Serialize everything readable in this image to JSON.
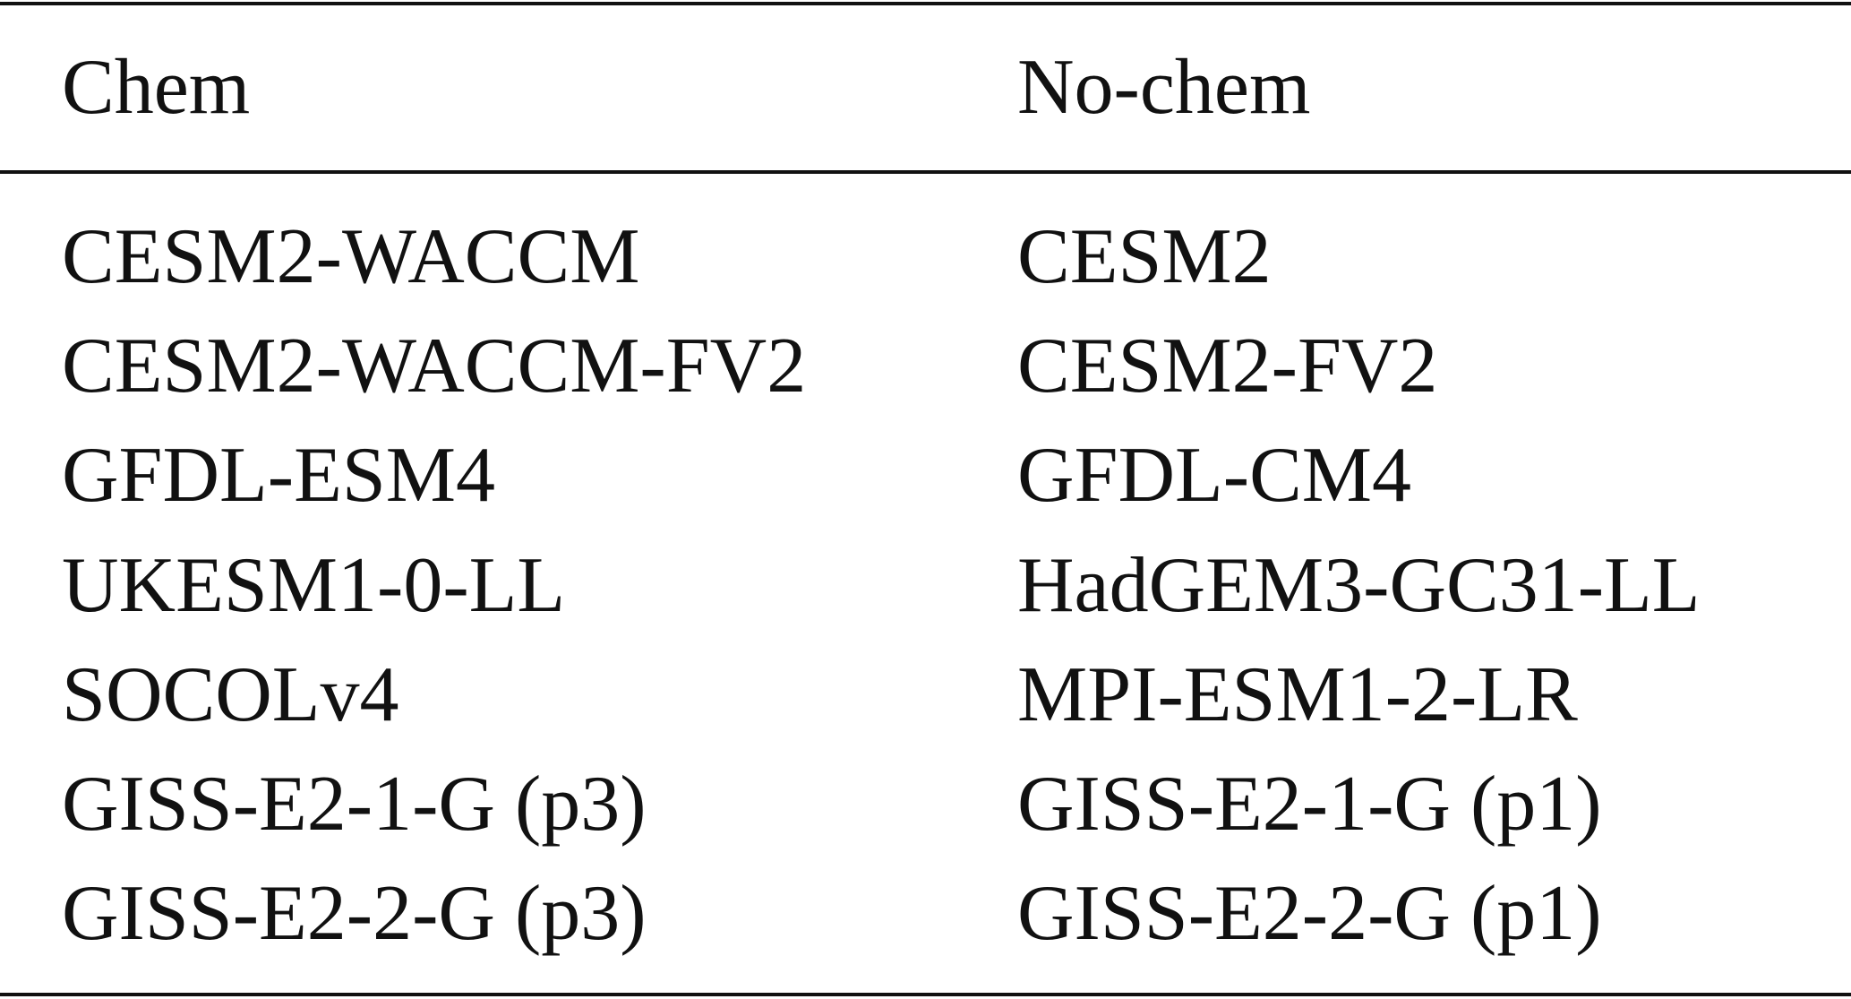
{
  "table": {
    "header": [
      "Chem",
      "No-chem"
    ],
    "rows": [
      [
        "CESM2-WACCM",
        "CESM2"
      ],
      [
        "CESM2-WACCM-FV2",
        "CESM2-FV2"
      ],
      [
        "GFDL-ESM4",
        "GFDL-CM4"
      ],
      [
        "UKESM1-0-LL",
        "HadGEM3-GC31-LL"
      ],
      [
        "SOCOLv4",
        "MPI-ESM1-2-LR"
      ],
      [
        "GISS-E2-1-G (p3)",
        "GISS-E2-1-G (p1)"
      ],
      [
        "GISS-E2-2-G (p3)",
        "GISS-E2-2-G (p1)"
      ]
    ]
  }
}
